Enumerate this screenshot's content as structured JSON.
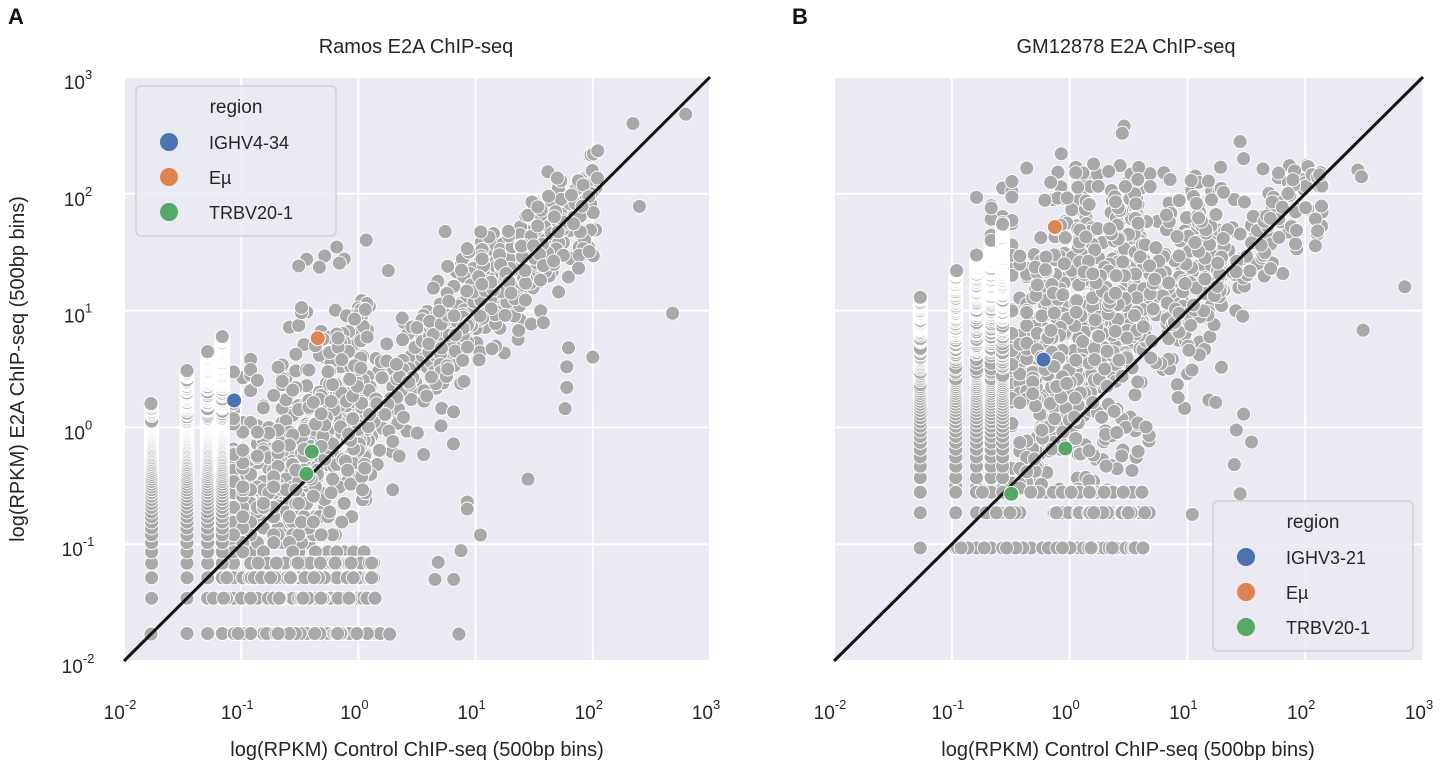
{
  "figure": {
    "panel_letters": [
      "A",
      "B"
    ]
  },
  "chart_data": [
    {
      "type": "scatter",
      "panel": "A",
      "title": "Ramos E2A ChIP-seq",
      "xlabel": "log(RPKM) Control ChIP-seq (500bp bins)",
      "ylabel": "log(RPKM) E2A ChIP-seq (500bp bins)",
      "xscale": "log",
      "yscale": "log",
      "xlim_exp": [
        -2,
        3
      ],
      "ylim_exp": [
        -2,
        3
      ],
      "xticks": [
        {
          "base": "10",
          "exp": "-2"
        },
        {
          "base": "10",
          "exp": "-1"
        },
        {
          "base": "10",
          "exp": "0"
        },
        {
          "base": "10",
          "exp": "1"
        },
        {
          "base": "10",
          "exp": "2"
        },
        {
          "base": "10",
          "exp": "3"
        }
      ],
      "yticks": [
        {
          "base": "10",
          "exp": "-2"
        },
        {
          "base": "10",
          "exp": "-1"
        },
        {
          "base": "10",
          "exp": "0"
        },
        {
          "base": "10",
          "exp": "1"
        },
        {
          "base": "10",
          "exp": "2"
        },
        {
          "base": "10",
          "exp": "3"
        }
      ],
      "show_y_ticks": true,
      "reference_line": "y = x",
      "legend": {
        "title": "region",
        "location": "upper-left"
      },
      "background_color": "#eaeaf2",
      "point_color": "#a9a9a9",
      "gray_cloud": "dense grey cloud of thousands of genomic bins clustered around the diagonal (approximated)",
      "gray_points_outliers": [
        {
          "x": 620,
          "y": 480
        },
        {
          "x": 220,
          "y": 400
        },
        {
          "x": 250,
          "y": 78
        },
        {
          "x": 480,
          "y": 9.5
        },
        {
          "x": 100,
          "y": 4.0
        },
        {
          "x": 62,
          "y": 4.8
        },
        {
          "x": 60,
          "y": 3.3
        },
        {
          "x": 60,
          "y": 2.2
        },
        {
          "x": 58,
          "y": 1.45
        },
        {
          "x": 1.8,
          "y": 22
        },
        {
          "x": 8.5,
          "y": 0.23
        },
        {
          "x": 8.5,
          "y": 0.2
        },
        {
          "x": 28,
          "y": 0.36
        },
        {
          "x": 11,
          "y": 0.12
        },
        {
          "x": 7.5,
          "y": 0.088
        },
        {
          "x": 4.8,
          "y": 0.07
        },
        {
          "x": 4.5,
          "y": 0.05
        },
        {
          "x": 6.5,
          "y": 0.05
        },
        {
          "x": 7.2,
          "y": 0.017
        },
        {
          "x": 1.85,
          "y": 0.017
        },
        {
          "x": 0.017,
          "y": 0.017
        },
        {
          "x": 0.017,
          "y": 1.6
        }
      ],
      "highlights": [
        {
          "region": "IGHV4-34",
          "color": "#4c72b0",
          "points": [
            {
              "x": 0.087,
              "y": 1.7
            }
          ]
        },
        {
          "region": "Eµ",
          "color": "#dd8452",
          "points": [
            {
              "x": 0.45,
              "y": 5.8
            }
          ]
        },
        {
          "region": "TRBV20-1",
          "color": "#55a868",
          "points": [
            {
              "x": 0.4,
              "y": 0.62
            },
            {
              "x": 0.36,
              "y": 0.4
            }
          ]
        }
      ]
    },
    {
      "type": "scatter",
      "panel": "B",
      "title": "GM12878 E2A ChIP-seq",
      "xlabel": "log(RPKM) Control ChIP-seq (500bp bins)",
      "ylabel": "",
      "xscale": "log",
      "yscale": "log",
      "xlim_exp": [
        -2,
        3
      ],
      "ylim_exp": [
        -2,
        3
      ],
      "xticks": [
        {
          "base": "10",
          "exp": "-2"
        },
        {
          "base": "10",
          "exp": "-1"
        },
        {
          "base": "10",
          "exp": "0"
        },
        {
          "base": "10",
          "exp": "1"
        },
        {
          "base": "10",
          "exp": "2"
        },
        {
          "base": "10",
          "exp": "3"
        }
      ],
      "yticks": [],
      "show_y_ticks": false,
      "reference_line": "y = x",
      "legend": {
        "title": "region",
        "location": "lower-right"
      },
      "background_color": "#eaeaf2",
      "point_color": "#a9a9a9",
      "gray_cloud": "dense grey cloud skewed above the diagonal at low control values (approximated)",
      "gray_points_outliers": [
        {
          "x": 700,
          "y": 16
        },
        {
          "x": 310,
          "y": 6.8
        },
        {
          "x": 280,
          "y": 160
        },
        {
          "x": 300,
          "y": 140
        },
        {
          "x": 28,
          "y": 280
        },
        {
          "x": 30,
          "y": 200
        },
        {
          "x": 2.9,
          "y": 380
        },
        {
          "x": 2.8,
          "y": 330
        },
        {
          "x": 0.85,
          "y": 220
        },
        {
          "x": 1.6,
          "y": 180
        },
        {
          "x": 30,
          "y": 1.3
        },
        {
          "x": 26,
          "y": 0.95
        },
        {
          "x": 35,
          "y": 0.75
        },
        {
          "x": 25,
          "y": 0.48
        },
        {
          "x": 28,
          "y": 0.27
        },
        {
          "x": 11,
          "y": 0.18
        },
        {
          "x": 0.054,
          "y": 13
        },
        {
          "x": 0.054,
          "y": 0.093
        },
        {
          "x": 0.11,
          "y": 22
        },
        {
          "x": 0.12,
          "y": 0.093
        },
        {
          "x": 3.6,
          "y": 0.093
        },
        {
          "x": 4.2,
          "y": 0.093
        }
      ],
      "highlights": [
        {
          "region": "IGHV3-21",
          "color": "#4c72b0",
          "points": [
            {
              "x": 0.6,
              "y": 3.8
            }
          ]
        },
        {
          "region": "Eµ",
          "color": "#dd8452",
          "points": [
            {
              "x": 0.75,
              "y": 52
            }
          ]
        },
        {
          "region": "TRBV20-1",
          "color": "#55a868",
          "points": [
            {
              "x": 0.92,
              "y": 0.66
            },
            {
              "x": 0.32,
              "y": 0.27
            }
          ]
        }
      ]
    }
  ]
}
